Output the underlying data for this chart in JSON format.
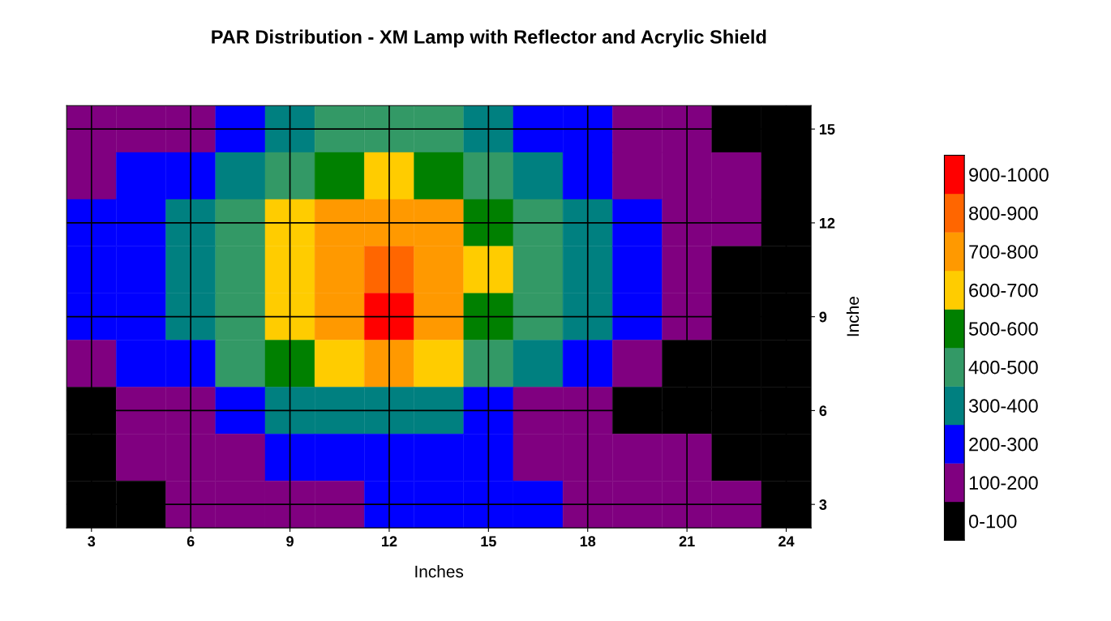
{
  "chart_data": {
    "type": "heatmap",
    "title": "PAR Distribution - XM Lamp with Reflector and Acrylic Shield",
    "xlabel": "Inches",
    "ylabel": "Inche",
    "categories": [
      "3",
      null,
      "6",
      null,
      "9",
      null,
      "12",
      null,
      "15",
      null,
      "18",
      null,
      "21",
      null,
      "24"
    ],
    "y_categories": [
      "15",
      null,
      "12",
      null,
      "9",
      null,
      "6",
      null,
      "3"
    ],
    "cells": [
      [
        130,
        170,
        190,
        240,
        330,
        420,
        460,
        420,
        330,
        260,
        200,
        160,
        130,
        90,
        50
      ],
      [
        150,
        210,
        290,
        380,
        470,
        560,
        600,
        560,
        470,
        380,
        270,
        180,
        140,
        110,
        60
      ],
      [
        200,
        230,
        320,
        430,
        620,
        720,
        790,
        700,
        590,
        470,
        360,
        240,
        160,
        120,
        70
      ],
      [
        210,
        260,
        360,
        470,
        640,
        780,
        880,
        770,
        600,
        450,
        330,
        220,
        150,
        80,
        40
      ],
      [
        200,
        250,
        350,
        460,
        620,
        790,
        960,
        790,
        580,
        420,
        300,
        200,
        110,
        60,
        30
      ],
      [
        170,
        210,
        290,
        410,
        530,
        650,
        710,
        640,
        470,
        330,
        240,
        170,
        90,
        40,
        20
      ],
      [
        90,
        140,
        190,
        240,
        330,
        370,
        380,
        320,
        240,
        180,
        140,
        90,
        50,
        30,
        20
      ],
      [
        60,
        120,
        160,
        190,
        230,
        270,
        290,
        250,
        200,
        170,
        150,
        130,
        110,
        90,
        40
      ],
      [
        30,
        70,
        110,
        140,
        170,
        190,
        220,
        240,
        260,
        210,
        170,
        150,
        130,
        100,
        60
      ]
    ],
    "clim": [
      0,
      1000
    ],
    "cticks": [
      {
        "value": 50,
        "label": "0-100"
      },
      {
        "value": 150,
        "label": "100-200"
      },
      {
        "value": 250,
        "label": "200-300"
      },
      {
        "value": 350,
        "label": "300-400"
      },
      {
        "value": 450,
        "label": "400-500"
      },
      {
        "value": 550,
        "label": "500-600"
      },
      {
        "value": 650,
        "label": "600-700"
      },
      {
        "value": 750,
        "label": "700-800"
      },
      {
        "value": 850,
        "label": "800-900"
      },
      {
        "value": 950,
        "label": "900-1000"
      }
    ],
    "colors": [
      "#000000",
      "#800080",
      "#0000ff",
      "#008080",
      "#339966",
      "#008000",
      "#ffcc00",
      "#ff9900",
      "#ff6600",
      "#ff0000"
    ],
    "grid": true
  }
}
